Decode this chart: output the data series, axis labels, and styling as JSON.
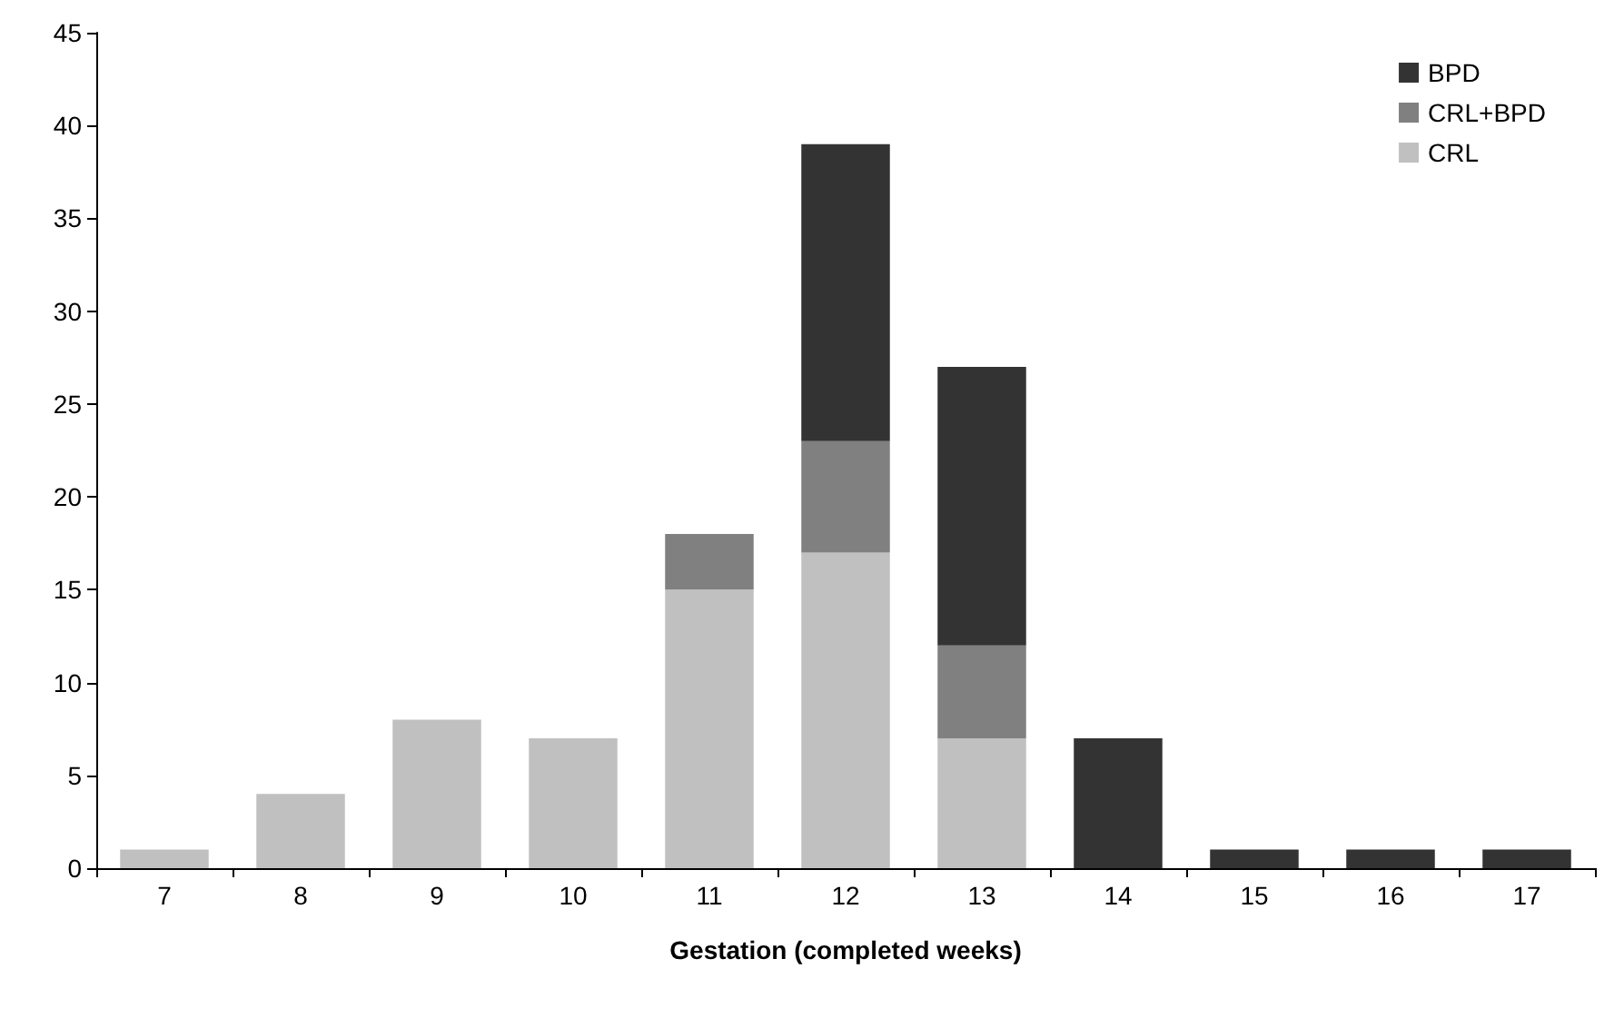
{
  "chart_data": {
    "type": "bar",
    "xlabel": "Gestation (completed weeks)",
    "categories": [
      "7",
      "8",
      "9",
      "10",
      "11",
      "12",
      "13",
      "14",
      "15",
      "16",
      "17"
    ],
    "stacked": true,
    "series": [
      {
        "name": "CRL",
        "color": "#c0c0c0",
        "values": [
          1,
          4,
          8,
          7,
          15,
          17,
          7,
          0,
          0,
          0,
          0
        ]
      },
      {
        "name": "CRL+BPD",
        "color": "#808080",
        "values": [
          0,
          0,
          0,
          0,
          3,
          6,
          5,
          0,
          0,
          0,
          0
        ]
      },
      {
        "name": "BPD",
        "color": "#333333",
        "values": [
          0,
          0,
          0,
          0,
          0,
          16,
          15,
          7,
          1,
          1,
          1
        ]
      }
    ],
    "ylim": [
      0,
      45
    ],
    "yticks": [
      0,
      5,
      10,
      15,
      20,
      25,
      30,
      35,
      40,
      45
    ],
    "grid": false,
    "legend": "top right"
  }
}
